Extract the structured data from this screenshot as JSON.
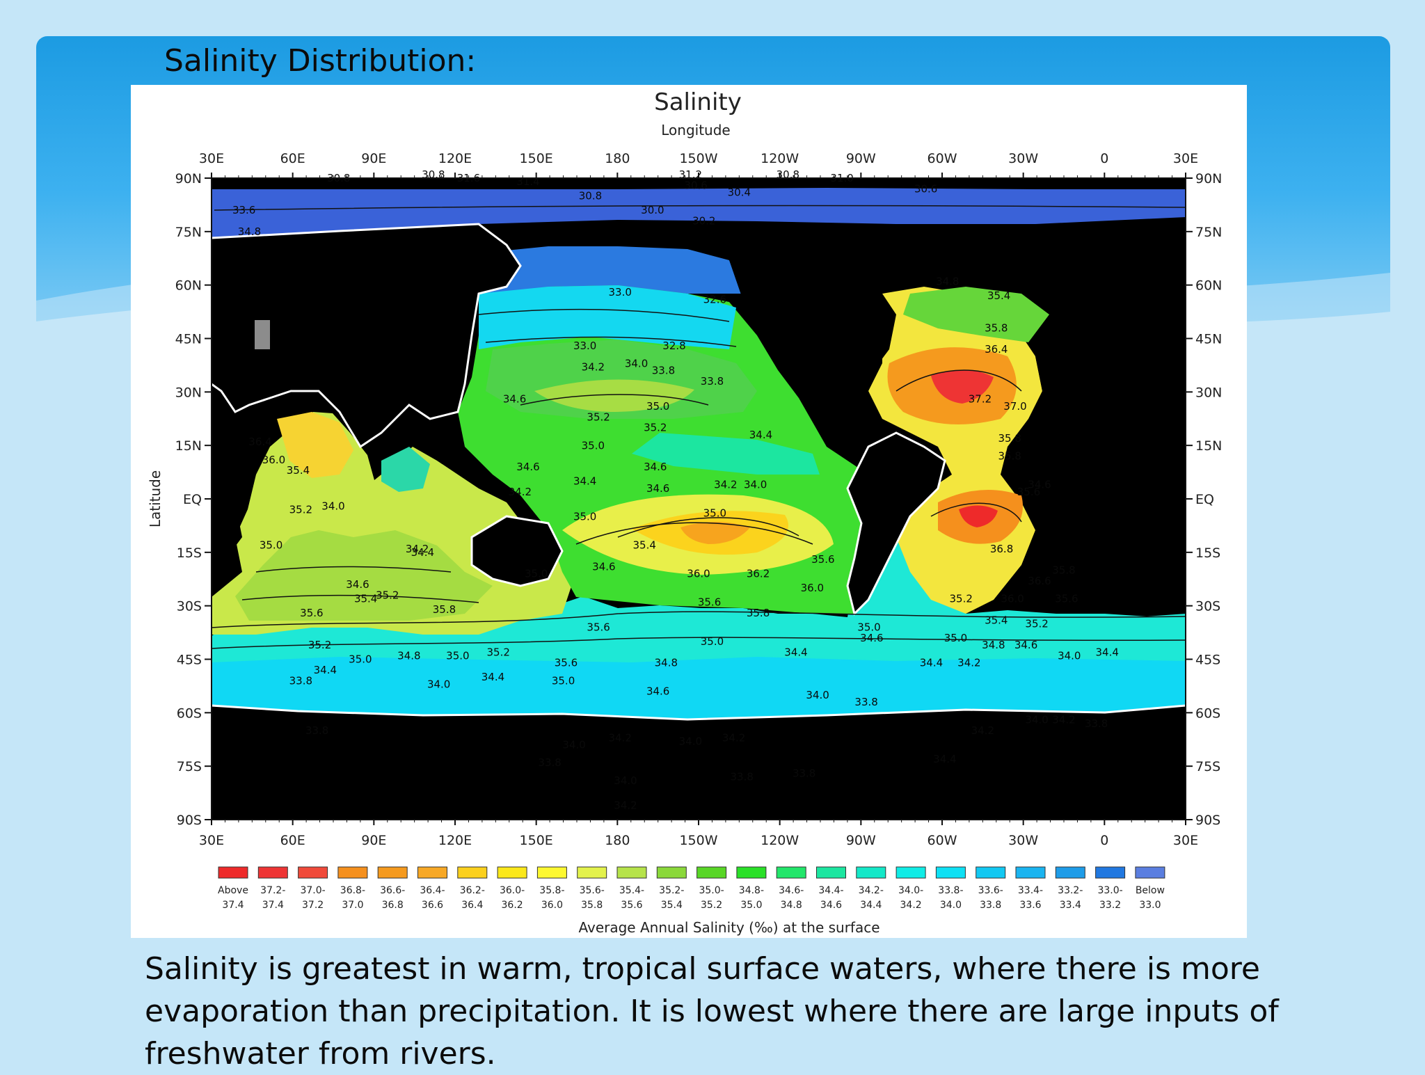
{
  "slide": {
    "title": "Salinity Distribution:",
    "caption": "Salinity is greatest in warm, tropical surface waters, where there is more evaporation than precipitation. It is lowest where there are large inputs of freshwater from rivers."
  },
  "map": {
    "title": "Salinity",
    "x_axis_label": "Longitude",
    "y_axis_label": "Latitude",
    "longitude_ticks": [
      "30E",
      "60E",
      "90E",
      "120E",
      "150E",
      "180",
      "150W",
      "120W",
      "90W",
      "60W",
      "30W",
      "0",
      "30E"
    ],
    "latitude_ticks": [
      "90N",
      "75N",
      "60N",
      "45N",
      "30N",
      "15N",
      "EQ",
      "15S",
      "30S",
      "45S",
      "60S",
      "75S",
      "90S"
    ],
    "contour_labels": [
      {
        "text": "30.8",
        "lon": 77,
        "lat": 89
      },
      {
        "text": "30.8",
        "lon": 112,
        "lat": 90
      },
      {
        "text": "31.6",
        "lon": 125,
        "lat": 89
      },
      {
        "text": "31.4",
        "lon": 147,
        "lat": 88
      },
      {
        "text": "30.8",
        "lon": 170,
        "lat": 84
      },
      {
        "text": "31.2",
        "lon": 207,
        "lat": 90
      },
      {
        "text": "30.6",
        "lon": 209,
        "lat": 87
      },
      {
        "text": "30.4",
        "lon": 225,
        "lat": 85
      },
      {
        "text": "30.8",
        "lon": 243,
        "lat": 90
      },
      {
        "text": "31.0",
        "lon": 263,
        "lat": 89
      },
      {
        "text": "30.6",
        "lon": 294,
        "lat": 86
      },
      {
        "text": "30.0",
        "lon": 193,
        "lat": 80
      },
      {
        "text": "30.2",
        "lon": 212,
        "lat": 77
      },
      {
        "text": "33.6",
        "lon": 42,
        "lat": 80
      },
      {
        "text": "34.8",
        "lon": 44,
        "lat": 74
      },
      {
        "text": "33.0",
        "lon": 181,
        "lat": 57
      },
      {
        "text": "32.6",
        "lon": 216,
        "lat": 55
      },
      {
        "text": "33.0",
        "lon": 168,
        "lat": 42
      },
      {
        "text": "34.2",
        "lon": 171,
        "lat": 36
      },
      {
        "text": "34.0",
        "lon": 187,
        "lat": 37
      },
      {
        "text": "32.8",
        "lon": 201,
        "lat": 42
      },
      {
        "text": "33.8",
        "lon": 197,
        "lat": 35
      },
      {
        "text": "33.8",
        "lon": 215,
        "lat": 32
      },
      {
        "text": "34.6",
        "lon": 142,
        "lat": 27
      },
      {
        "text": "35.0",
        "lon": 195,
        "lat": 25
      },
      {
        "text": "35.2",
        "lon": 173,
        "lat": 22
      },
      {
        "text": "35.2",
        "lon": 194,
        "lat": 19
      },
      {
        "text": "35.0",
        "lon": 171,
        "lat": 14
      },
      {
        "text": "34.4",
        "lon": 233,
        "lat": 17
      },
      {
        "text": "34.6",
        "lon": 147,
        "lat": 8
      },
      {
        "text": "34.6",
        "lon": 194,
        "lat": 8
      },
      {
        "text": "34.4",
        "lon": 168,
        "lat": 4
      },
      {
        "text": "34.2",
        "lon": 144,
        "lat": 1
      },
      {
        "text": "34.6",
        "lon": 195,
        "lat": 2
      },
      {
        "text": "34.2",
        "lon": 220,
        "lat": 3
      },
      {
        "text": "34.0",
        "lon": 231,
        "lat": 3
      },
      {
        "text": "35.0",
        "lon": 168,
        "lat": -6
      },
      {
        "text": "35.0",
        "lon": 216,
        "lat": -5
      },
      {
        "text": "35.4",
        "lon": 190,
        "lat": -14
      },
      {
        "text": "35.0",
        "lon": 150,
        "lat": -22
      },
      {
        "text": "34.6",
        "lon": 175,
        "lat": -20
      },
      {
        "text": "36.0",
        "lon": 210,
        "lat": -22
      },
      {
        "text": "36.2",
        "lon": 232,
        "lat": -22
      },
      {
        "text": "35.6",
        "lon": 256,
        "lat": -18
      },
      {
        "text": "35.0",
        "lon": 273,
        "lat": -37
      },
      {
        "text": "35.6",
        "lon": 214,
        "lat": -30
      },
      {
        "text": "35.8",
        "lon": 232,
        "lat": -33
      },
      {
        "text": "36.0",
        "lon": 252,
        "lat": -26
      },
      {
        "text": "34.6",
        "lon": 274,
        "lat": -40
      },
      {
        "text": "35.6",
        "lon": 173,
        "lat": -37
      },
      {
        "text": "35.0",
        "lon": 215,
        "lat": -41
      },
      {
        "text": "34.4",
        "lon": 246,
        "lat": -44
      },
      {
        "text": "34.8",
        "lon": 198,
        "lat": -47
      },
      {
        "text": "35.6",
        "lon": 161,
        "lat": -47
      },
      {
        "text": "35.0",
        "lon": 160,
        "lat": -52
      },
      {
        "text": "34.6",
        "lon": 195,
        "lat": -55
      },
      {
        "text": "34.0",
        "lon": 254,
        "lat": -56
      },
      {
        "text": "33.8",
        "lon": 272,
        "lat": -58
      },
      {
        "text": "34.2",
        "lon": 181,
        "lat": -68
      },
      {
        "text": "34.0",
        "lon": 207,
        "lat": -69
      },
      {
        "text": "34.2",
        "lon": 223,
        "lat": -68
      },
      {
        "text": "34.0",
        "lon": 164,
        "lat": -70
      },
      {
        "text": "33.8",
        "lon": 155,
        "lat": -75
      },
      {
        "text": "33.8",
        "lon": 226,
        "lat": -79
      },
      {
        "text": "33.8",
        "lon": 249,
        "lat": -78
      },
      {
        "text": "34.0",
        "lon": 183,
        "lat": -80
      },
      {
        "text": "34.2",
        "lon": 183,
        "lat": -87
      },
      {
        "text": "36.4",
        "lon": 48,
        "lat": 15
      },
      {
        "text": "36.0",
        "lon": 53,
        "lat": 10
      },
      {
        "text": "35.4",
        "lon": 62,
        "lat": 7
      },
      {
        "text": "35.2",
        "lon": 63,
        "lat": -4
      },
      {
        "text": "34.0",
        "lon": 75,
        "lat": -3
      },
      {
        "text": "35.0",
        "lon": 52,
        "lat": -14
      },
      {
        "text": "34.4",
        "lon": 108,
        "lat": -16
      },
      {
        "text": "34.2",
        "lon": 106,
        "lat": -15
      },
      {
        "text": "34.6",
        "lon": 84,
        "lat": -25
      },
      {
        "text": "35.2",
        "lon": 95,
        "lat": -28
      },
      {
        "text": "35.4",
        "lon": 87,
        "lat": -29
      },
      {
        "text": "35.8",
        "lon": 116,
        "lat": -32
      },
      {
        "text": "35.6",
        "lon": 67,
        "lat": -33
      },
      {
        "text": "35.2",
        "lon": 70,
        "lat": -42
      },
      {
        "text": "35.0",
        "lon": 85,
        "lat": -46
      },
      {
        "text": "34.8",
        "lon": 103,
        "lat": -45
      },
      {
        "text": "35.0",
        "lon": 121,
        "lat": -45
      },
      {
        "text": "35.2",
        "lon": 136,
        "lat": -44
      },
      {
        "text": "34.4",
        "lon": 72,
        "lat": -49
      },
      {
        "text": "33.8",
        "lon": 63,
        "lat": -52
      },
      {
        "text": "34.0",
        "lon": 114,
        "lat": -53
      },
      {
        "text": "34.4",
        "lon": 134,
        "lat": -51
      },
      {
        "text": "33.8",
        "lon": 69,
        "lat": -66
      },
      {
        "text": "34.8",
        "lon": 302,
        "lat": 60
      },
      {
        "text": "35.4",
        "lon": 321,
        "lat": 56
      },
      {
        "text": "35.8",
        "lon": 320,
        "lat": 47
      },
      {
        "text": "36.4",
        "lon": 320,
        "lat": 41
      },
      {
        "text": "37.2",
        "lon": 314,
        "lat": 27
      },
      {
        "text": "37.0",
        "lon": 327,
        "lat": 25
      },
      {
        "text": "35.8",
        "lon": 325,
        "lat": 16
      },
      {
        "text": "35.8",
        "lon": 325,
        "lat": 11
      },
      {
        "text": "35.6",
        "lon": 332,
        "lat": 1
      },
      {
        "text": "34.6",
        "lon": 336,
        "lat": 3
      },
      {
        "text": "36.8",
        "lon": 322,
        "lat": -15
      },
      {
        "text": "36.6",
        "lon": 336,
        "lat": -24
      },
      {
        "text": "35.8",
        "lon": 345,
        "lat": -21
      },
      {
        "text": "35.2",
        "lon": 307,
        "lat": -29
      },
      {
        "text": "36.0",
        "lon": 326,
        "lat": -29
      },
      {
        "text": "35.6",
        "lon": 346,
        "lat": -29
      },
      {
        "text": "35.4",
        "lon": 320,
        "lat": -35
      },
      {
        "text": "35.2",
        "lon": 335,
        "lat": -36
      },
      {
        "text": "35.0",
        "lon": 305,
        "lat": -40
      },
      {
        "text": "34.8",
        "lon": 319,
        "lat": -42
      },
      {
        "text": "34.6",
        "lon": 331,
        "lat": -42
      },
      {
        "text": "34.4",
        "lon": 296,
        "lat": -47
      },
      {
        "text": "34.2",
        "lon": 310,
        "lat": -47
      },
      {
        "text": "34.0",
        "lon": 347,
        "lat": -45
      },
      {
        "text": "34.4",
        "lon": 361,
        "lat": -44
      },
      {
        "text": "34.0",
        "lon": 335,
        "lat": -63
      },
      {
        "text": "34.2",
        "lon": 345,
        "lat": -63
      },
      {
        "text": "34.2",
        "lon": 315,
        "lat": -66
      },
      {
        "text": "34.4",
        "lon": 301,
        "lat": -74
      },
      {
        "text": "33.8",
        "lon": 357,
        "lat": -64
      }
    ]
  },
  "legend": {
    "title": "Average Annual Salinity (‰) at the surface",
    "bins": [
      {
        "top": "Above",
        "bottom": "37.4",
        "color": "#ee2a2a"
      },
      {
        "top": "37.2-",
        "bottom": "37.4",
        "color": "#ee3434"
      },
      {
        "top": "37.0-",
        "bottom": "37.2",
        "color": "#f04a3a"
      },
      {
        "top": "36.8-",
        "bottom": "37.0",
        "color": "#f5901d"
      },
      {
        "top": "36.6-",
        "bottom": "36.8",
        "color": "#f59a1e"
      },
      {
        "top": "36.4-",
        "bottom": "36.6",
        "color": "#f7a826"
      },
      {
        "top": "36.2-",
        "bottom": "36.4",
        "color": "#fbd01d"
      },
      {
        "top": "36.0-",
        "bottom": "36.2",
        "color": "#fbe81a"
      },
      {
        "top": "35.8-",
        "bottom": "36.0",
        "color": "#fdf830"
      },
      {
        "top": "35.6-",
        "bottom": "35.8",
        "color": "#e3f24c"
      },
      {
        "top": "35.4-",
        "bottom": "35.6",
        "color": "#b6e34a"
      },
      {
        "top": "35.2-",
        "bottom": "35.4",
        "color": "#8ad83a"
      },
      {
        "top": "35.0-",
        "bottom": "35.2",
        "color": "#58d626"
      },
      {
        "top": "34.8-",
        "bottom": "35.0",
        "color": "#2ae028"
      },
      {
        "top": "34.6-",
        "bottom": "34.8",
        "color": "#22e66a"
      },
      {
        "top": "34.4-",
        "bottom": "34.6",
        "color": "#1ce6a0"
      },
      {
        "top": "34.2-",
        "bottom": "34.4",
        "color": "#14e8c8"
      },
      {
        "top": "34.0-",
        "bottom": "34.2",
        "color": "#10ece6"
      },
      {
        "top": "33.8-",
        "bottom": "34.0",
        "color": "#0ee0f4"
      },
      {
        "top": "33.6-",
        "bottom": "33.8",
        "color": "#12c8f2"
      },
      {
        "top": "33.4-",
        "bottom": "33.6",
        "color": "#1ab4f0"
      },
      {
        "top": "33.2-",
        "bottom": "33.4",
        "color": "#1e9ce8"
      },
      {
        "top": "33.0-",
        "bottom": "33.2",
        "color": "#2178e0"
      },
      {
        "top": "Below",
        "bottom": "33.0",
        "color": "#5a7ee0"
      }
    ]
  }
}
